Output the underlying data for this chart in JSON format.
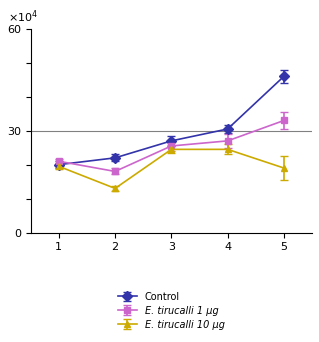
{
  "x": [
    1,
    2,
    3,
    4,
    5
  ],
  "control_y": [
    20000,
    22000,
    27000,
    30500,
    46000
  ],
  "control_yerr": [
    1000,
    1000,
    1500,
    1200,
    2000
  ],
  "et1_y": [
    21000,
    18000,
    25500,
    27000,
    33000
  ],
  "et1_yerr": [
    800,
    900,
    1500,
    2000,
    2500
  ],
  "et10_y": [
    19500,
    13000,
    24500,
    24500,
    19000
  ],
  "et10_yerr": [
    900,
    800,
    1200,
    1500,
    3500
  ],
  "control_color": "#3333aa",
  "et1_color": "#cc66cc",
  "et10_color": "#ccaa00",
  "ylim": [
    0,
    60000
  ],
  "yticks": [
    0,
    10000,
    20000,
    30000,
    40000,
    50000,
    60000
  ],
  "ytick_labels": [
    "0",
    "",
    "",
    "30",
    "",
    "",
    "60"
  ],
  "xlabel": "",
  "ylabel": "",
  "hline_y": 30000,
  "legend_labels": [
    "Control",
    "E. tirucalli 1 μg",
    "E. tirucalli 10 μg"
  ],
  "figsize": [
    3.19,
    3.42
  ],
  "dpi": 100
}
